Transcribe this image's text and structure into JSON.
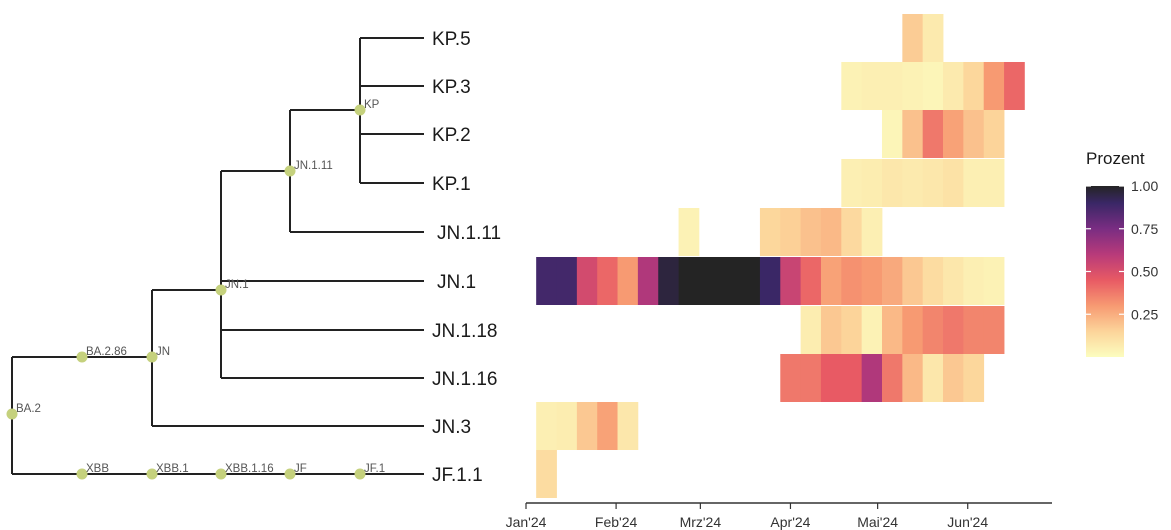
{
  "chart_data": {
    "type": "heatmap",
    "tree": {
      "tips": [
        "KP.5",
        "KP.3",
        "KP.2",
        "KP.1",
        "JN.1.11",
        "JN.1",
        "JN.1.18",
        "JN.1.16",
        "JN.3",
        "JF.1.1"
      ],
      "nodes": [
        "BA.2",
        "BA.2.86",
        "JN",
        "JN.1",
        "JN.1.11",
        "KP",
        "XBB",
        "XBB.1",
        "XBB.1.16",
        "JF",
        "JF.1"
      ]
    },
    "x_ticks": [
      "Jan'24",
      "Feb'24",
      "Mrz'24",
      "Apr'24",
      "Mai'24",
      "Jun'24"
    ],
    "x_range": [
      "2024-01-01",
      "2024-06-30"
    ],
    "week_starts": [
      "2024-01-08",
      "2024-01-15",
      "2024-01-22",
      "2024-01-29",
      "2024-02-05",
      "2024-02-12",
      "2024-02-19",
      "2024-02-26",
      "2024-03-04",
      "2024-03-11",
      "2024-03-18",
      "2024-03-25",
      "2024-04-01",
      "2024-04-08",
      "2024-04-15",
      "2024-04-22",
      "2024-04-29",
      "2024-05-06",
      "2024-05-13",
      "2024-05-20",
      "2024-05-27",
      "2024-06-03",
      "2024-06-10",
      "2024-06-17",
      "2024-06-24"
    ],
    "cells": [
      {
        "lineage": "KP.5",
        "values": [
          null,
          null,
          null,
          null,
          null,
          null,
          null,
          null,
          null,
          null,
          null,
          null,
          null,
          null,
          null,
          null,
          null,
          null,
          0.17,
          0.07,
          null,
          null,
          null,
          null,
          null
        ]
      },
      {
        "lineage": "KP.3",
        "values": [
          null,
          null,
          null,
          null,
          null,
          null,
          null,
          null,
          null,
          null,
          null,
          null,
          null,
          null,
          null,
          0.04,
          0.05,
          0.05,
          0.04,
          0.03,
          0.07,
          0.14,
          0.3,
          0.42,
          null
        ]
      },
      {
        "lineage": "KP.2",
        "values": [
          null,
          null,
          null,
          null,
          null,
          null,
          null,
          null,
          null,
          null,
          null,
          null,
          null,
          null,
          null,
          null,
          null,
          0.03,
          0.2,
          0.38,
          0.28,
          0.2,
          0.15,
          null,
          null
        ]
      },
      {
        "lineage": "KP.1",
        "values": [
          null,
          null,
          null,
          null,
          null,
          null,
          null,
          null,
          null,
          null,
          null,
          null,
          null,
          null,
          null,
          0.05,
          0.06,
          0.08,
          0.07,
          0.08,
          0.1,
          0.05,
          0.05,
          null,
          null
        ]
      },
      {
        "lineage": "JN.1.11",
        "values": [
          null,
          null,
          null,
          null,
          null,
          null,
          null,
          0.04,
          null,
          null,
          null,
          0.14,
          0.16,
          0.2,
          0.22,
          0.13,
          0.05,
          null,
          null,
          null,
          null,
          null,
          null,
          null,
          null
        ]
      },
      {
        "lineage": "JN.1",
        "values": [
          0.88,
          0.88,
          0.52,
          0.42,
          0.3,
          0.62,
          0.96,
          1.0,
          1.0,
          1.0,
          1.0,
          0.9,
          0.55,
          0.42,
          0.28,
          0.32,
          0.3,
          0.26,
          0.18,
          0.12,
          0.08,
          0.05,
          0.04,
          null,
          null
        ]
      },
      {
        "lineage": "JN.1.18",
        "values": [
          null,
          null,
          null,
          null,
          null,
          null,
          null,
          null,
          null,
          null,
          null,
          null,
          null,
          0.06,
          0.18,
          0.15,
          0.04,
          0.22,
          0.3,
          0.35,
          0.38,
          0.35,
          0.35,
          null,
          null
        ]
      },
      {
        "lineage": "JN.1.16",
        "values": [
          null,
          null,
          null,
          null,
          null,
          null,
          null,
          null,
          null,
          null,
          null,
          null,
          0.38,
          0.38,
          0.45,
          0.45,
          0.62,
          0.38,
          0.22,
          0.08,
          0.18,
          0.14,
          null,
          null,
          null
        ]
      },
      {
        "lineage": "JN.3",
        "values": [
          0.05,
          0.06,
          0.18,
          0.28,
          0.08,
          null,
          null,
          null,
          null,
          null,
          null,
          null,
          null,
          null,
          null,
          null,
          null,
          null,
          null,
          null,
          null,
          null,
          null,
          null,
          null
        ]
      },
      {
        "lineage": "JF.1.1",
        "values": [
          0.12,
          null,
          null,
          null,
          null,
          null,
          null,
          null,
          null,
          null,
          null,
          null,
          null,
          null,
          null,
          null,
          null,
          null,
          null,
          null,
          null,
          null,
          null,
          null,
          null
        ]
      }
    ],
    "legend": {
      "title": "Prozent",
      "ticks": [
        "1.00",
        "0.75",
        "0.50",
        "0.25"
      ],
      "tick_values": [
        1.0,
        0.75,
        0.5,
        0.25
      ],
      "placement": "right"
    },
    "colors": {
      "low": "#fcfdbf",
      "high": "#2b2b2b",
      "branch": "#222222",
      "node_point": "#c5d17d"
    },
    "grid": false
  }
}
